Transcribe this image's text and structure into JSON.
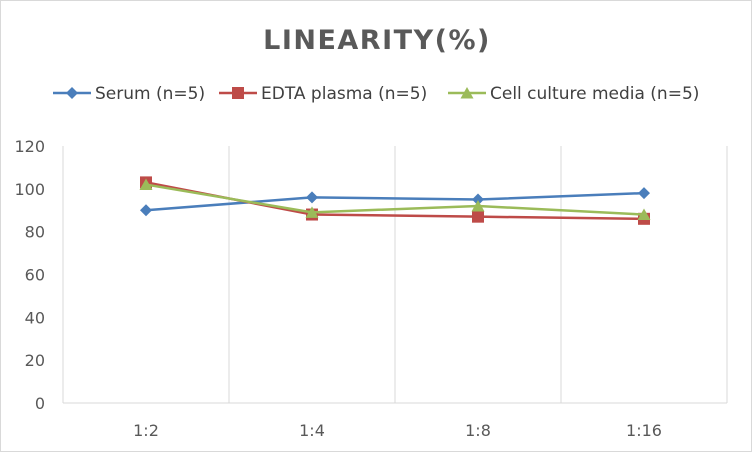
{
  "chart_data": {
    "type": "line",
    "title": "LINEARITY(%)",
    "xlabel": "",
    "ylabel": "",
    "categories": [
      "1:2",
      "1:4",
      "1:8",
      "1:16"
    ],
    "ylim": [
      0,
      120
    ],
    "yticks": [
      0,
      20,
      40,
      60,
      80,
      100,
      120
    ],
    "grid": "vertical",
    "legend_position": "top",
    "series": [
      {
        "name": "Serum (n=5)",
        "values": [
          90,
          96,
          95,
          98
        ],
        "color": "#4a7ebb",
        "marker": "diamond"
      },
      {
        "name": "EDTA plasma (n=5)",
        "values": [
          103,
          88,
          87,
          86
        ],
        "color": "#be4b48",
        "marker": "square"
      },
      {
        "name": "Cell culture media (n=5)",
        "values": [
          102,
          89,
          92,
          88
        ],
        "color": "#9bbb59",
        "marker": "triangle"
      }
    ]
  }
}
